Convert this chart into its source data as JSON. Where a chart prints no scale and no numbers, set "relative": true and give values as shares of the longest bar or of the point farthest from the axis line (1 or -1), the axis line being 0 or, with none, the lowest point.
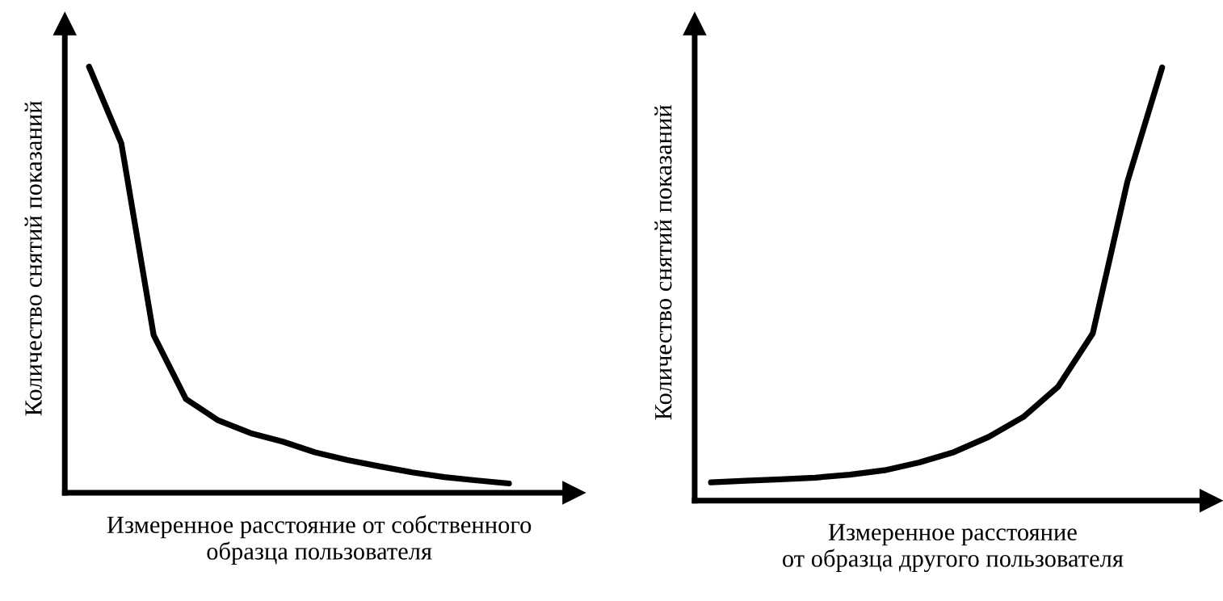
{
  "chart_data": [
    {
      "type": "line",
      "relative": true,
      "xlabel": "Измеренное расстояние от собственного\nобразца пользователя",
      "ylabel": "Количество снятий показаний",
      "categories": [
        null,
        null,
        null,
        null,
        null,
        null,
        null,
        null,
        null,
        null,
        null,
        null,
        null,
        null
      ],
      "series": [
        {
          "color": "#000000",
          "values": [
            1,
            0.82,
            0.37,
            0.22,
            0.17,
            0.14,
            0.12,
            0.095,
            0.077,
            0.062,
            0.048,
            0.037,
            0.029,
            0.022
          ]
        }
      ],
      "legend": false,
      "tick_labels": false,
      "marker": "none",
      "line_style": "solid"
    },
    {
      "type": "line",
      "relative": true,
      "xlabel": "Измеренное расстояние\nот образца другого пользователя",
      "ylabel": "Количество снятий показаний",
      "categories": [
        null,
        null,
        null,
        null,
        null,
        null,
        null,
        null,
        null,
        null,
        null,
        null,
        null,
        null
      ],
      "series": [
        {
          "color": "#000000",
          "values": [
            0.042,
            0.046,
            0.049,
            0.053,
            0.06,
            0.07,
            0.088,
            0.112,
            0.147,
            0.193,
            0.263,
            0.386,
            0.737,
            1
          ]
        }
      ],
      "legend": false,
      "tick_labels": false,
      "marker": "none",
      "line_style": "solid"
    }
  ]
}
